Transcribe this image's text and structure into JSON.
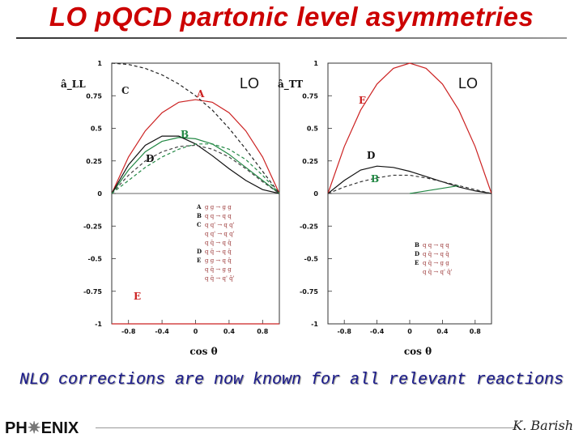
{
  "slide": {
    "title": "LO pQCD partonic level asymmetries",
    "footer": "NLO corrections are now known for all relevant reactions",
    "logo_left": "PH",
    "logo_star": "✷",
    "logo_right": "ENIX",
    "author": "K. Barish"
  },
  "chart_data": [
    {
      "type": "line",
      "panel": "left",
      "ylabel": "â_LL",
      "xlabel": "cos θ",
      "tag": "LO",
      "xlim": [
        -1,
        1
      ],
      "ylim": [
        -1,
        1
      ],
      "xticks": [
        "-0.8",
        "-0.4",
        "0",
        "0.4",
        "0.8"
      ],
      "yticks": [
        "1",
        "0.75",
        "0.5",
        "0.25",
        "0",
        "-0.25",
        "-0.5",
        "-0.75",
        "-1"
      ],
      "curve_labels": [
        "A",
        "B",
        "C",
        "D",
        "E"
      ],
      "legend": [
        {
          "key": "A",
          "text": "g g → g g"
        },
        {
          "key": "B",
          "text": "q q → q q"
        },
        {
          "key": "C",
          "text": "q q' → q q'"
        },
        {
          "key": "",
          "text": "q q' → q q'"
        },
        {
          "key": "",
          "text": "q q̄ → q q̄"
        },
        {
          "key": "D",
          "text": "q q̄ → q q̄"
        },
        {
          "key": "E",
          "text": "g g → q q̄"
        },
        {
          "key": "",
          "text": "q q̄ → g g"
        },
        {
          "key": "",
          "text": "q q̄ → q' q̄'"
        }
      ],
      "series": [
        {
          "key": "A",
          "color": "#cc2222",
          "style": "solid",
          "x": [
            -1,
            -0.8,
            -0.6,
            -0.4,
            -0.2,
            0,
            0.2,
            0.4,
            0.6,
            0.8,
            1
          ],
          "y": [
            0,
            0.28,
            0.48,
            0.62,
            0.7,
            0.72,
            0.7,
            0.62,
            0.48,
            0.28,
            0
          ]
        },
        {
          "key": "B",
          "color": "#228844",
          "style": "solid",
          "x": [
            -1,
            -0.8,
            -0.6,
            -0.4,
            -0.2,
            0,
            0.2,
            0.4,
            0.6,
            0.8,
            1
          ],
          "y": [
            0,
            0.18,
            0.32,
            0.4,
            0.43,
            0.42,
            0.38,
            0.3,
            0.2,
            0.1,
            0
          ]
        },
        {
          "key": "C",
          "color": "#222222",
          "style": "dashed",
          "x": [
            -1,
            -0.8,
            -0.6,
            -0.4,
            -0.2,
            0,
            0.2,
            0.4,
            0.6,
            0.8,
            1
          ],
          "y": [
            1,
            0.99,
            0.96,
            0.91,
            0.84,
            0.75,
            0.64,
            0.5,
            0.34,
            0.17,
            0
          ]
        },
        {
          "key": "D",
          "color": "#111111",
          "style": "solid",
          "x": [
            -1,
            -0.8,
            -0.6,
            -0.4,
            -0.2,
            0,
            0.2,
            0.4,
            0.6,
            0.8,
            1
          ],
          "y": [
            0,
            0.22,
            0.37,
            0.44,
            0.44,
            0.38,
            0.29,
            0.19,
            0.1,
            0.03,
            0
          ]
        },
        {
          "key": "D2",
          "color": "#444444",
          "style": "dashed",
          "x": [
            -1,
            -0.8,
            -0.6,
            -0.4,
            -0.2,
            0,
            0.2,
            0.4,
            0.6,
            0.8,
            1
          ],
          "y": [
            0,
            0.14,
            0.25,
            0.32,
            0.36,
            0.37,
            0.34,
            0.28,
            0.19,
            0.09,
            0
          ]
        },
        {
          "key": "B2",
          "color": "#228844",
          "style": "dashed",
          "x": [
            -1,
            -0.8,
            -0.6,
            -0.4,
            -0.2,
            0,
            0.2,
            0.4,
            0.6,
            0.8,
            1
          ],
          "y": [
            0,
            0.1,
            0.2,
            0.28,
            0.34,
            0.38,
            0.38,
            0.34,
            0.26,
            0.14,
            0
          ]
        },
        {
          "key": "E",
          "color": "#cc2222",
          "style": "solid",
          "x": [
            -1,
            1
          ],
          "y": [
            -1,
            -1
          ]
        }
      ]
    },
    {
      "type": "line",
      "panel": "right",
      "ylabel": "â_TT",
      "xlabel": "cos θ",
      "tag": "LO",
      "xlim": [
        -1,
        1
      ],
      "ylim": [
        -1,
        1
      ],
      "xticks": [
        "-0.8",
        "-0.4",
        "0",
        "0.4",
        "0.8"
      ],
      "yticks": [
        "1",
        "0.75",
        "0.5",
        "0.25",
        "0",
        "-0.25",
        "-0.5",
        "-0.75",
        "-1"
      ],
      "curve_labels": [
        "E",
        "D",
        "B"
      ],
      "legend": [
        {
          "key": "B",
          "text": "q q → q q"
        },
        {
          "key": "D",
          "text": "q q̄ → q q̄"
        },
        {
          "key": "E",
          "text": "q q̄ → g g"
        },
        {
          "key": "",
          "text": "q q̄ → q' q̄'"
        }
      ],
      "series": [
        {
          "key": "E",
          "color": "#cc2222",
          "style": "solid",
          "x": [
            -1,
            -0.8,
            -0.6,
            -0.4,
            -0.2,
            0,
            0.2,
            0.4,
            0.6,
            0.8,
            1
          ],
          "y": [
            0,
            0.36,
            0.64,
            0.84,
            0.96,
            1,
            0.96,
            0.84,
            0.64,
            0.36,
            0
          ]
        },
        {
          "key": "D",
          "color": "#111111",
          "style": "solid",
          "x": [
            -1,
            -0.8,
            -0.6,
            -0.4,
            -0.2,
            0,
            0.2,
            0.4,
            0.6,
            0.8,
            1
          ],
          "y": [
            0,
            0.1,
            0.18,
            0.21,
            0.2,
            0.17,
            0.13,
            0.09,
            0.05,
            0.02,
            0
          ]
        },
        {
          "key": "D2",
          "color": "#333333",
          "style": "dashed",
          "x": [
            -1,
            -0.8,
            -0.6,
            -0.4,
            -0.2,
            0,
            0.2,
            0.4,
            0.6,
            0.8,
            1
          ],
          "y": [
            0,
            0.05,
            0.09,
            0.12,
            0.14,
            0.14,
            0.12,
            0.09,
            0.06,
            0.03,
            0
          ]
        },
        {
          "key": "B",
          "color": "#228844",
          "style": "solid",
          "x": [
            0,
            0.3,
            0.6
          ],
          "y": [
            0.0,
            0.03,
            0.06
          ]
        }
      ]
    }
  ]
}
